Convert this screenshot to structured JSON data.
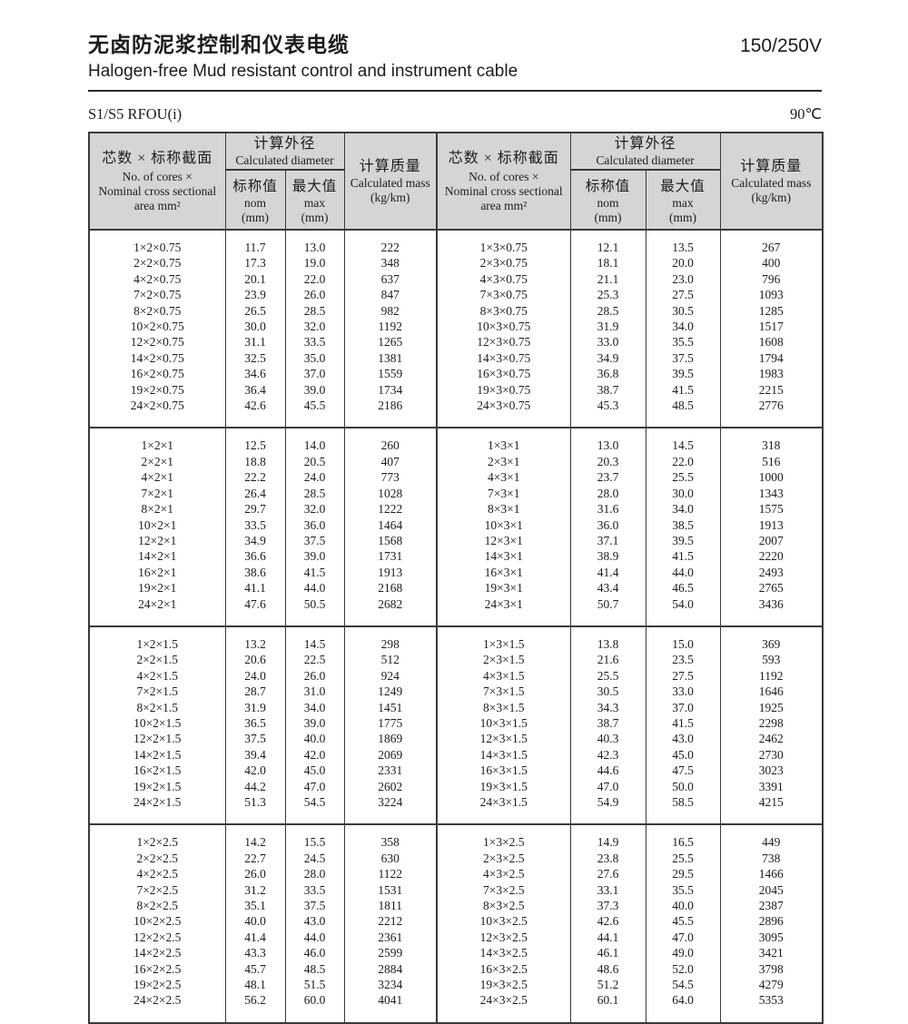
{
  "header": {
    "title_zh": "无卤防泥浆控制和仪表电缆",
    "title_en": "Halogen-free Mud resistant control and instrument cable",
    "voltage": "150/250V",
    "model": "S1/S5 RFOU(i)",
    "temperature": "90℃"
  },
  "table": {
    "columns": {
      "desc": {
        "zh": "芯数 × 标称截面",
        "en1": "No. of cores ×",
        "en2": "Nominal cross sectional",
        "en3": "area mm²"
      },
      "diameter": {
        "zh": "计算外径",
        "en": "Calculated diameter"
      },
      "nom": {
        "zh": "标称值",
        "en": "nom",
        "unit": "(mm)"
      },
      "max": {
        "zh": "最大值",
        "en": "max",
        "unit": "(mm)"
      },
      "mass": {
        "zh": "计算质量",
        "en": "Calculated mass",
        "unit": "(kg/km)"
      }
    },
    "groups": [
      {
        "size": "0.75",
        "left": [
          [
            "1×2×0.75",
            "11.7",
            "13.0",
            "222"
          ],
          [
            "2×2×0.75",
            "17.3",
            "19.0",
            "348"
          ],
          [
            "4×2×0.75",
            "20.1",
            "22.0",
            "637"
          ],
          [
            "7×2×0.75",
            "23.9",
            "26.0",
            "847"
          ],
          [
            "8×2×0.75",
            "26.5",
            "28.5",
            "982"
          ],
          [
            "10×2×0.75",
            "30.0",
            "32.0",
            "1192"
          ],
          [
            "12×2×0.75",
            "31.1",
            "33.5",
            "1265"
          ],
          [
            "14×2×0.75",
            "32.5",
            "35.0",
            "1381"
          ],
          [
            "16×2×0.75",
            "34.6",
            "37.0",
            "1559"
          ],
          [
            "19×2×0.75",
            "36.4",
            "39.0",
            "1734"
          ],
          [
            "24×2×0.75",
            "42.6",
            "45.5",
            "2186"
          ]
        ],
        "right": [
          [
            "1×3×0.75",
            "12.1",
            "13.5",
            "267"
          ],
          [
            "2×3×0.75",
            "18.1",
            "20.0",
            "400"
          ],
          [
            "4×3×0.75",
            "21.1",
            "23.0",
            "796"
          ],
          [
            "7×3×0.75",
            "25.3",
            "27.5",
            "1093"
          ],
          [
            "8×3×0.75",
            "28.5",
            "30.5",
            "1285"
          ],
          [
            "10×3×0.75",
            "31.9",
            "34.0",
            "1517"
          ],
          [
            "12×3×0.75",
            "33.0",
            "35.5",
            "1608"
          ],
          [
            "14×3×0.75",
            "34.9",
            "37.5",
            "1794"
          ],
          [
            "16×3×0.75",
            "36.8",
            "39.5",
            "1983"
          ],
          [
            "19×3×0.75",
            "38.7",
            "41.5",
            "2215"
          ],
          [
            "24×3×0.75",
            "45.3",
            "48.5",
            "2776"
          ]
        ]
      },
      {
        "size": "1",
        "left": [
          [
            "1×2×1",
            "12.5",
            "14.0",
            "260"
          ],
          [
            "2×2×1",
            "18.8",
            "20.5",
            "407"
          ],
          [
            "4×2×1",
            "22.2",
            "24.0",
            "773"
          ],
          [
            "7×2×1",
            "26.4",
            "28.5",
            "1028"
          ],
          [
            "8×2×1",
            "29.7",
            "32.0",
            "1222"
          ],
          [
            "10×2×1",
            "33.5",
            "36.0",
            "1464"
          ],
          [
            "12×2×1",
            "34.9",
            "37.5",
            "1568"
          ],
          [
            "14×2×1",
            "36.6",
            "39.0",
            "1731"
          ],
          [
            "16×2×1",
            "38.6",
            "41.5",
            "1913"
          ],
          [
            "19×2×1",
            "41.1",
            "44.0",
            "2168"
          ],
          [
            "24×2×1",
            "47.6",
            "50.5",
            "2682"
          ]
        ],
        "right": [
          [
            "1×3×1",
            "13.0",
            "14.5",
            "318"
          ],
          [
            "2×3×1",
            "20.3",
            "22.0",
            "516"
          ],
          [
            "4×3×1",
            "23.7",
            "25.5",
            "1000"
          ],
          [
            "7×3×1",
            "28.0",
            "30.0",
            "1343"
          ],
          [
            "8×3×1",
            "31.6",
            "34.0",
            "1575"
          ],
          [
            "10×3×1",
            "36.0",
            "38.5",
            "1913"
          ],
          [
            "12×3×1",
            "37.1",
            "39.5",
            "2007"
          ],
          [
            "14×3×1",
            "38.9",
            "41.5",
            "2220"
          ],
          [
            "16×3×1",
            "41.4",
            "44.0",
            "2493"
          ],
          [
            "19×3×1",
            "43.4",
            "46.5",
            "2765"
          ],
          [
            "24×3×1",
            "50.7",
            "54.0",
            "3436"
          ]
        ]
      },
      {
        "size": "1.5",
        "left": [
          [
            "1×2×1.5",
            "13.2",
            "14.5",
            "298"
          ],
          [
            "2×2×1.5",
            "20.6",
            "22.5",
            "512"
          ],
          [
            "4×2×1.5",
            "24.0",
            "26.0",
            "924"
          ],
          [
            "7×2×1.5",
            "28.7",
            "31.0",
            "1249"
          ],
          [
            "8×2×1.5",
            "31.9",
            "34.0",
            "1451"
          ],
          [
            "10×2×1.5",
            "36.5",
            "39.0",
            "1775"
          ],
          [
            "12×2×1.5",
            "37.5",
            "40.0",
            "1869"
          ],
          [
            "14×2×1.5",
            "39.4",
            "42.0",
            "2069"
          ],
          [
            "16×2×1.5",
            "42.0",
            "45.0",
            "2331"
          ],
          [
            "19×2×1.5",
            "44.2",
            "47.0",
            "2602"
          ],
          [
            "24×2×1.5",
            "51.3",
            "54.5",
            "3224"
          ]
        ],
        "right": [
          [
            "1×3×1.5",
            "13.8",
            "15.0",
            "369"
          ],
          [
            "2×3×1.5",
            "21.6",
            "23.5",
            "593"
          ],
          [
            "4×3×1.5",
            "25.5",
            "27.5",
            "1192"
          ],
          [
            "7×3×1.5",
            "30.5",
            "33.0",
            "1646"
          ],
          [
            "8×3×1.5",
            "34.3",
            "37.0",
            "1925"
          ],
          [
            "10×3×1.5",
            "38.7",
            "41.5",
            "2298"
          ],
          [
            "12×3×1.5",
            "40.3",
            "43.0",
            "2462"
          ],
          [
            "14×3×1.5",
            "42.3",
            "45.0",
            "2730"
          ],
          [
            "16×3×1.5",
            "44.6",
            "47.5",
            "3023"
          ],
          [
            "19×3×1.5",
            "47.0",
            "50.0",
            "3391"
          ],
          [
            "24×3×1.5",
            "54.9",
            "58.5",
            "4215"
          ]
        ]
      },
      {
        "size": "2.5",
        "left": [
          [
            "1×2×2.5",
            "14.2",
            "15.5",
            "358"
          ],
          [
            "2×2×2.5",
            "22.7",
            "24.5",
            "630"
          ],
          [
            "4×2×2.5",
            "26.0",
            "28.0",
            "1122"
          ],
          [
            "7×2×2.5",
            "31.2",
            "33.5",
            "1531"
          ],
          [
            "8×2×2.5",
            "35.1",
            "37.5",
            "1811"
          ],
          [
            "10×2×2.5",
            "40.0",
            "43.0",
            "2212"
          ],
          [
            "12×2×2.5",
            "41.4",
            "44.0",
            "2361"
          ],
          [
            "14×2×2.5",
            "43.3",
            "46.0",
            "2599"
          ],
          [
            "16×2×2.5",
            "45.7",
            "48.5",
            "2884"
          ],
          [
            "19×2×2.5",
            "48.1",
            "51.5",
            "3234"
          ],
          [
            "24×2×2.5",
            "56.2",
            "60.0",
            "4041"
          ]
        ],
        "right": [
          [
            "1×3×2.5",
            "14.9",
            "16.5",
            "449"
          ],
          [
            "2×3×2.5",
            "23.8",
            "25.5",
            "738"
          ],
          [
            "4×3×2.5",
            "27.6",
            "29.5",
            "1466"
          ],
          [
            "7×3×2.5",
            "33.1",
            "35.5",
            "2045"
          ],
          [
            "8×3×2.5",
            "37.3",
            "40.0",
            "2387"
          ],
          [
            "10×3×2.5",
            "42.6",
            "45.5",
            "2896"
          ],
          [
            "12×3×2.5",
            "44.1",
            "47.0",
            "3095"
          ],
          [
            "14×3×2.5",
            "46.1",
            "49.0",
            "3421"
          ],
          [
            "16×3×2.5",
            "48.6",
            "52.0",
            "3798"
          ],
          [
            "19×3×2.5",
            "51.2",
            "54.5",
            "4279"
          ],
          [
            "24×3×2.5",
            "60.1",
            "64.0",
            "5353"
          ]
        ]
      }
    ]
  },
  "colors": {
    "header_bg": "#d5d5d5",
    "border": "#3a3a3a",
    "text": "#1c1c1c"
  }
}
